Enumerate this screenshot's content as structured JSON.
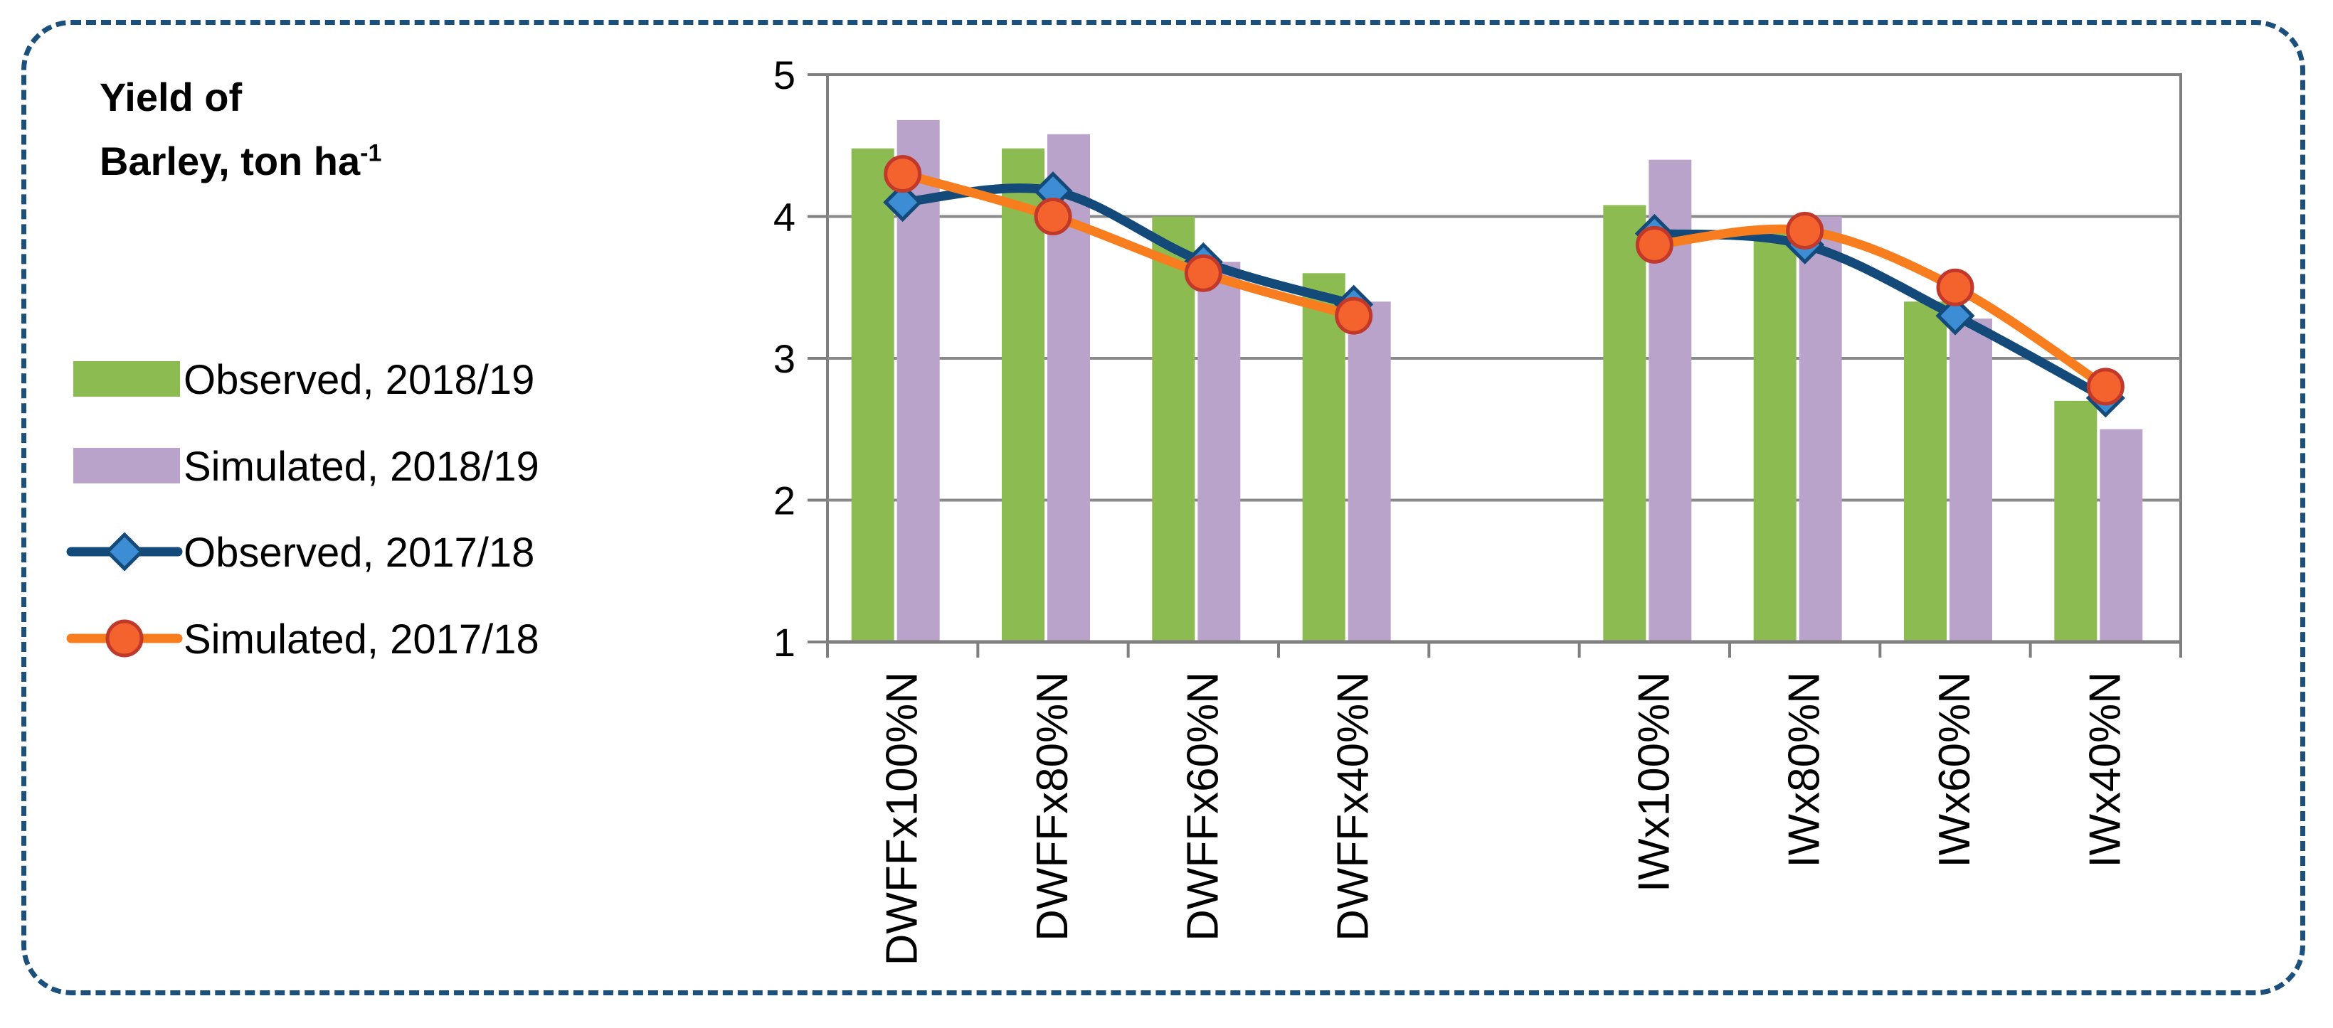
{
  "chart_data": {
    "type": "bar",
    "title": "",
    "ylabel": {
      "main": "Yield of",
      "line2": "Barley, ton ha",
      "sup": "-1"
    },
    "xlabel": "",
    "ylim": [
      1,
      5
    ],
    "yticks": [
      1,
      2,
      3,
      4,
      5
    ],
    "categories": [
      "DWFFx100%N",
      "DWFFx80%N",
      "DWFFx60%N",
      "DWFFx40%N",
      "",
      "IWx100%N",
      "IWx80%N",
      "IWx60%N",
      "IWx40%N"
    ],
    "grid": true,
    "legend_position": "left",
    "series": [
      {
        "name": "Observed, 2018/19",
        "kind": "bar",
        "color": "#8cbb52",
        "values": [
          4.48,
          4.48,
          4.0,
          3.6,
          null,
          4.08,
          3.9,
          3.4,
          2.7
        ]
      },
      {
        "name": "Simulated, 2018/19",
        "kind": "bar",
        "color": "#b9a3cb",
        "values": [
          4.68,
          4.58,
          3.68,
          3.4,
          null,
          4.4,
          4.0,
          3.28,
          2.5
        ]
      },
      {
        "name": "Observed, 2017/18",
        "kind": "line",
        "marker": "diamond",
        "color": "#134a7a",
        "marker_color": "#3c8dd4",
        "values": [
          4.1,
          4.18,
          3.68,
          3.38,
          null,
          3.88,
          3.8,
          3.3,
          2.72
        ]
      },
      {
        "name": "Simulated, 2017/18",
        "kind": "line",
        "marker": "circle",
        "color": "#f87d1e",
        "marker_color": "#f4622e",
        "values": [
          4.3,
          4.0,
          3.6,
          3.3,
          null,
          3.8,
          3.9,
          3.5,
          2.8
        ]
      }
    ]
  }
}
